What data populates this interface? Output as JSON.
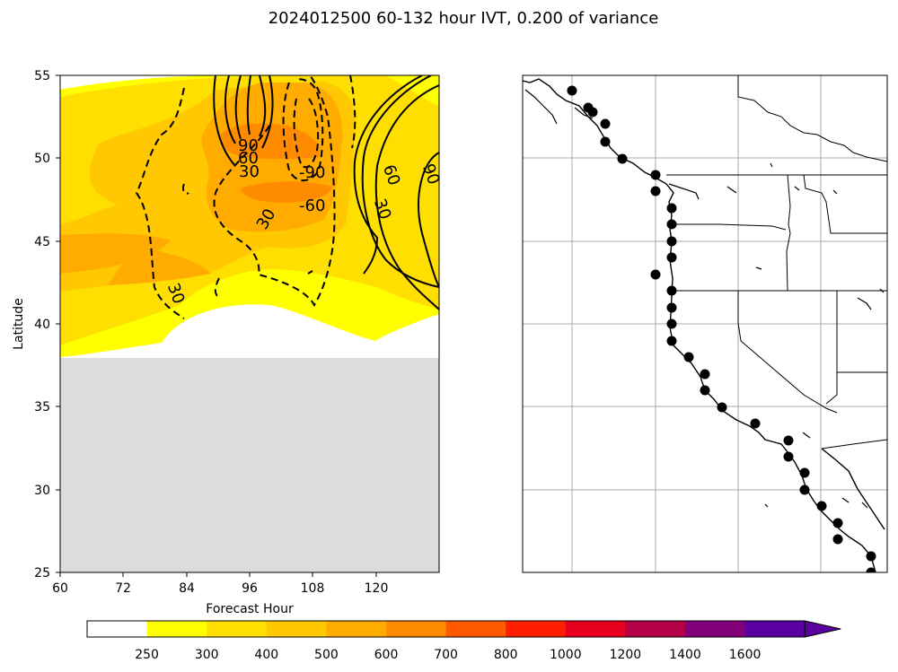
{
  "figure": {
    "title": "2024012500 60-132 hour IVT, 0.200 of variance"
  },
  "chart_data": [
    {
      "type": "heatmap",
      "panel": "hovmoller",
      "title": "",
      "xlabel": "Forecast Hour",
      "ylabel": "Latitude",
      "xlim": [
        60,
        132
      ],
      "ylim": [
        25,
        55
      ],
      "xticks": [
        "60",
        "72",
        "84",
        "96",
        "108",
        "120"
      ],
      "yticks": [
        "25",
        "30",
        "35",
        "40",
        "45",
        "50",
        "55"
      ],
      "grid": false,
      "missing_region": {
        "lat_below": 38,
        "color": "#dcdcdc"
      },
      "ivt_bands_filled": [
        {
          "band": "250-300",
          "color": "#ffff00"
        },
        {
          "band": "300-400",
          "color": "#ffdf00"
        },
        {
          "band": "400-500",
          "color": "#ffc800"
        },
        {
          "band": "500-600",
          "color": "#ffab00"
        },
        {
          "band": "600-700",
          "color": "#ff8c00"
        }
      ],
      "contour_labels": [
        "90",
        "60",
        "30",
        "-90",
        "-60",
        "30",
        "30",
        "60",
        "90",
        "30"
      ],
      "contour_style": {
        "positive": "solid",
        "negative": "dashed"
      }
    },
    {
      "type": "scatter",
      "panel": "map",
      "title": "",
      "description_markers": "forecast points along the coast",
      "grid": true,
      "points_count": 37
    }
  ],
  "colorbar": {
    "tick_labels": [
      "250",
      "300",
      "400",
      "500",
      "600",
      "700",
      "800",
      "1000",
      "1200",
      "1400",
      "1600"
    ],
    "colors": [
      "#ffffff",
      "#ffff00",
      "#ffdf00",
      "#ffc800",
      "#ffab00",
      "#ff8c00",
      "#ff5a00",
      "#ff1e00",
      "#e6001e",
      "#b40046",
      "#82007a",
      "#5a00a0"
    ],
    "extend": "max"
  }
}
